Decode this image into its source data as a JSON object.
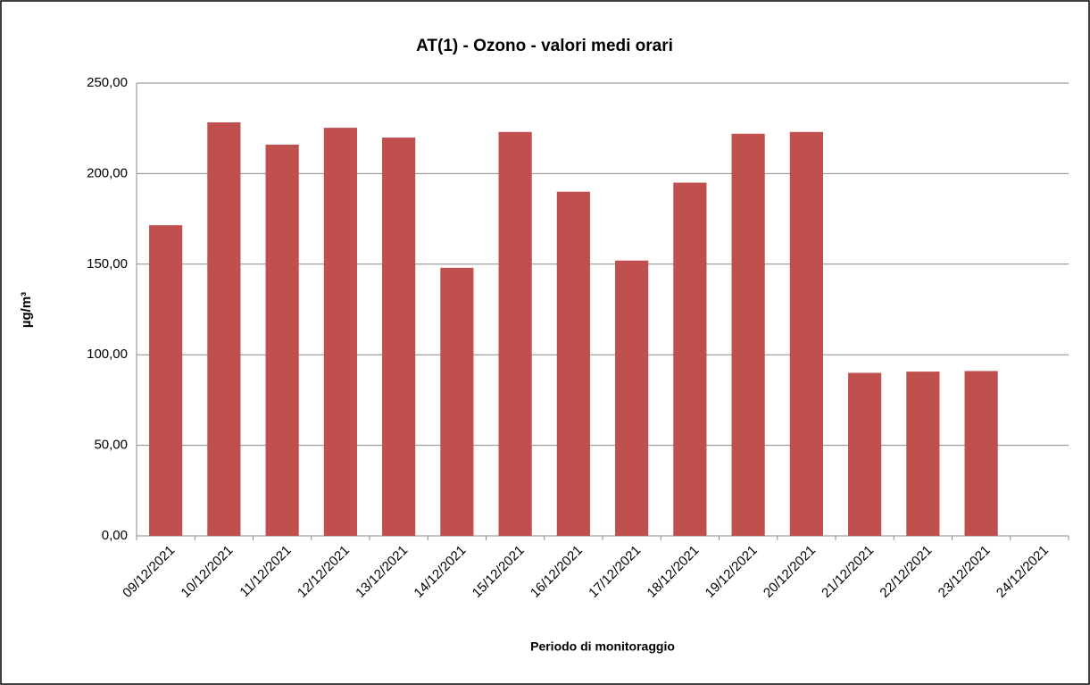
{
  "chart_data": {
    "type": "bar",
    "title": "AT(1) - Ozono - valori medi orari",
    "y_label": "µg/m³",
    "x_label": "Periodo di  monitoraggio",
    "categories": [
      "09/12/2021",
      "10/12/2021",
      "11/12/2021",
      "12/12/2021",
      "13/12/2021",
      "14/12/2021",
      "15/12/2021",
      "16/12/2021",
      "17/12/2021",
      "18/12/2021",
      "19/12/2021",
      "20/12/2021",
      "21/12/2021",
      "22/12/2021",
      "23/12/2021",
      "24/12/2021"
    ],
    "values": [
      171.5,
      228.3,
      216,
      225.3,
      219.9,
      148,
      223,
      190,
      152,
      195,
      222,
      223,
      90,
      90.7,
      91,
      null
    ],
    "color": "#c0504d",
    "ylim": [
      0,
      250
    ],
    "yticks": [
      {
        "value": 0,
        "label": "0,00"
      },
      {
        "value": 50,
        "label": "50,00"
      },
      {
        "value": 100,
        "label": "100,00"
      },
      {
        "value": 150,
        "label": "150,00"
      },
      {
        "value": 200,
        "label": "200,00"
      },
      {
        "value": 250,
        "label": "250,00"
      }
    ],
    "grid": true
  }
}
